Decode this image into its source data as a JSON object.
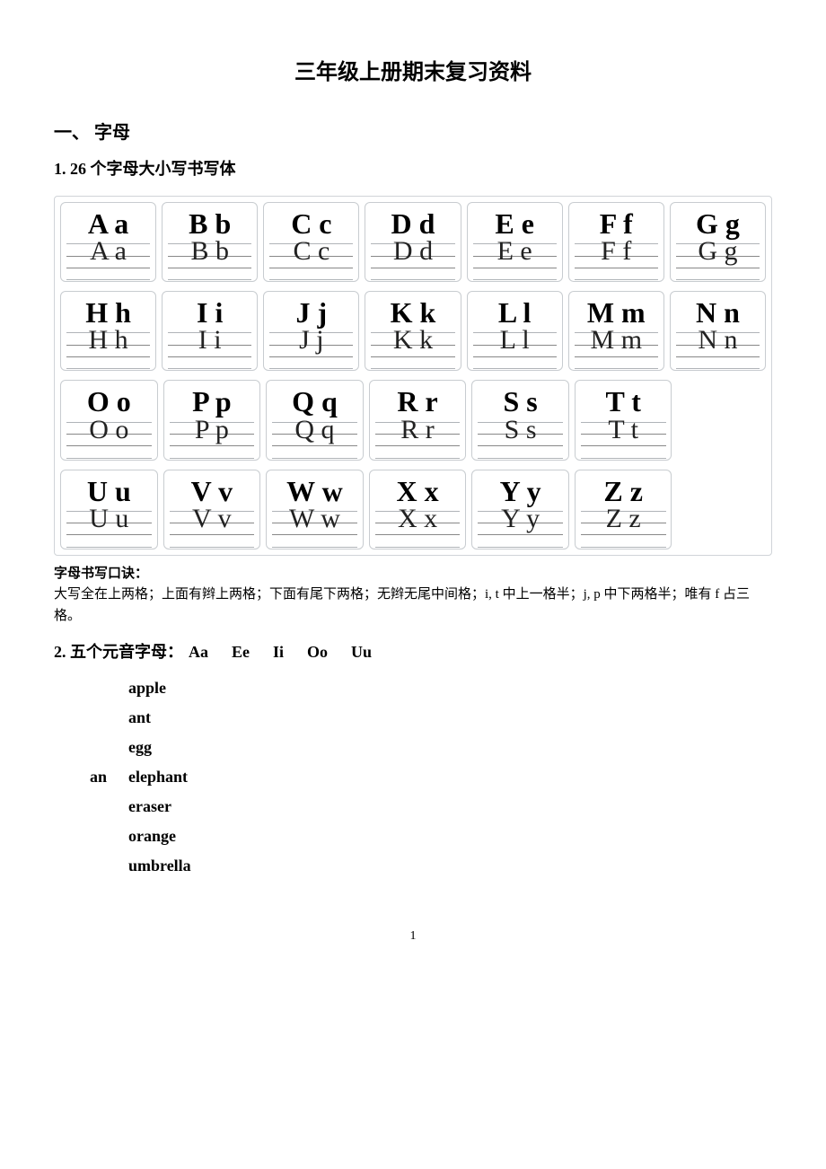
{
  "title": "三年级上册期末复习资料",
  "section1": {
    "heading": "一、  字母",
    "sub1": {
      "heading": "1. 26 个字母大小写书写体",
      "rows": [
        [
          {
            "print": "A a",
            "script": "A a"
          },
          {
            "print": "B b",
            "script": "B b"
          },
          {
            "print": "C c",
            "script": "C c"
          },
          {
            "print": "D d",
            "script": "D d"
          },
          {
            "print": "E e",
            "script": "E e"
          },
          {
            "print": "F f",
            "script": "F f"
          },
          {
            "print": "G g",
            "script": "G g"
          }
        ],
        [
          {
            "print": "H h",
            "script": "H h"
          },
          {
            "print": "I i",
            "script": "I i"
          },
          {
            "print": "J j",
            "script": "J j"
          },
          {
            "print": "K k",
            "script": "K k"
          },
          {
            "print": "L l",
            "script": "L l"
          },
          {
            "print": "M m",
            "script": "M m"
          },
          {
            "print": "N n",
            "script": "N n"
          }
        ],
        [
          {
            "print": "O o",
            "script": "O o"
          },
          {
            "print": "P p",
            "script": "P p"
          },
          {
            "print": "Q q",
            "script": "Q q"
          },
          {
            "print": "R r",
            "script": "R r"
          },
          {
            "print": "S s",
            "script": "S s"
          },
          {
            "print": "T t",
            "script": "T t"
          }
        ],
        [
          {
            "print": "U u",
            "script": "U u"
          },
          {
            "print": "V v",
            "script": "V v"
          },
          {
            "print": "W w",
            "script": "W w"
          },
          {
            "print": "X x",
            "script": "X x"
          },
          {
            "print": "Y y",
            "script": "Y y"
          },
          {
            "print": "Z z",
            "script": "Z z"
          }
        ]
      ],
      "grid_columns": 7,
      "card_border_color": "#c8ccd0",
      "line_color": "#b0b4b8",
      "print_fontsize": 32,
      "script_fontsize": 30
    },
    "mnemonic": {
      "heading": "字母书写口诀：",
      "text": "大写全在上两格；上面有辫上两格；下面有尾下两格；无辫无尾中间格；i, t 中上一格半；j, p 中下两格半；唯有 f 占三格。"
    },
    "sub2": {
      "heading_prefix": "2.  五个元音字母：",
      "vowels": [
        "Aa",
        "Ee",
        "Ii",
        "Oo",
        "Uu"
      ],
      "an_label": "an",
      "words": [
        "apple",
        "ant",
        "egg",
        "elephant",
        "eraser",
        "orange",
        "umbrella"
      ]
    }
  },
  "page_number": "1",
  "colors": {
    "background": "#ffffff",
    "text": "#000000",
    "border": "#c8ccd0"
  }
}
